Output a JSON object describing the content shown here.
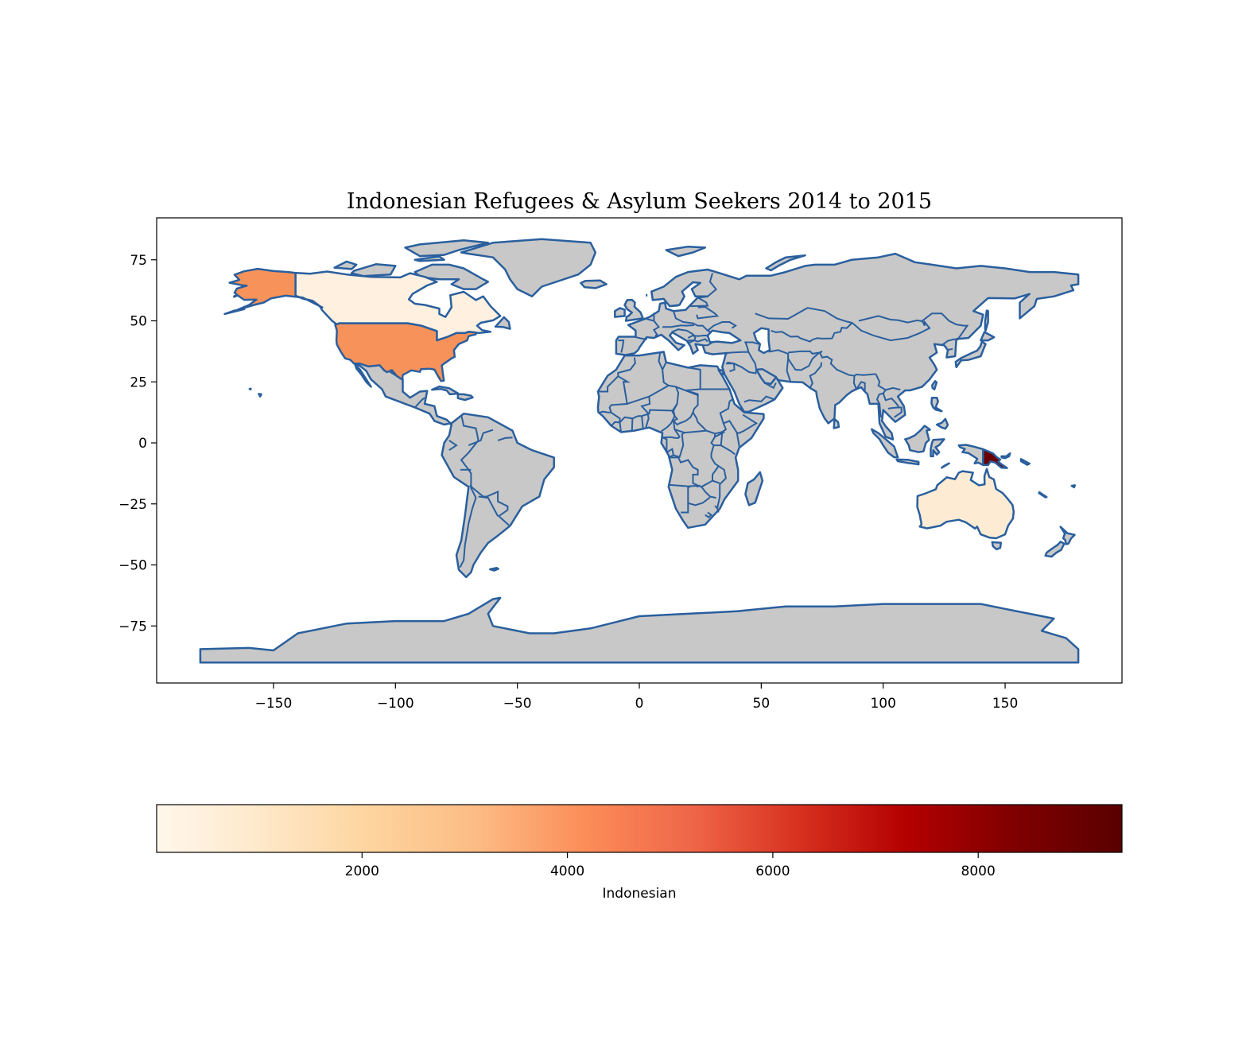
{
  "title": "Indonesian Refugees & Asylum Seekers 2014 to 2015",
  "map": {
    "x_ticks": [
      -150,
      -100,
      -50,
      0,
      50,
      100,
      150
    ],
    "y_ticks": [
      75,
      50,
      25,
      0,
      -25,
      -50,
      -75
    ],
    "x_tick_labels": [
      "−150",
      "−100",
      "−50",
      "0",
      "50",
      "100",
      "150"
    ],
    "y_tick_labels": [
      "75",
      "50",
      "25",
      "0",
      "−25",
      "−50",
      "−75"
    ],
    "default_land_color": "#c8c8c8",
    "edge_color": "#2a5f9e",
    "highlighted_countries": [
      {
        "country": "Papua New Guinea",
        "value": 9400,
        "color": "#6b0000"
      },
      {
        "country": "United States of America",
        "value": 4300,
        "color": "#f7925a"
      },
      {
        "country": "Canada",
        "value": 100,
        "color": "#fff0e0"
      },
      {
        "country": "Australia",
        "value": 300,
        "color": "#fdecd3"
      }
    ]
  },
  "colorbar": {
    "label": "Indonesian",
    "ticks": [
      2000,
      4000,
      6000,
      8000
    ],
    "tick_labels": [
      "2000",
      "4000",
      "6000",
      "8000"
    ],
    "range": [
      0,
      9400
    ],
    "colormap": "OrRd",
    "stops": [
      "#fff7ec",
      "#fee8c8",
      "#fdd49e",
      "#fdbb84",
      "#fc8d59",
      "#ef6548",
      "#d7301f",
      "#b30000",
      "#7f0000",
      "#5a0000"
    ]
  }
}
